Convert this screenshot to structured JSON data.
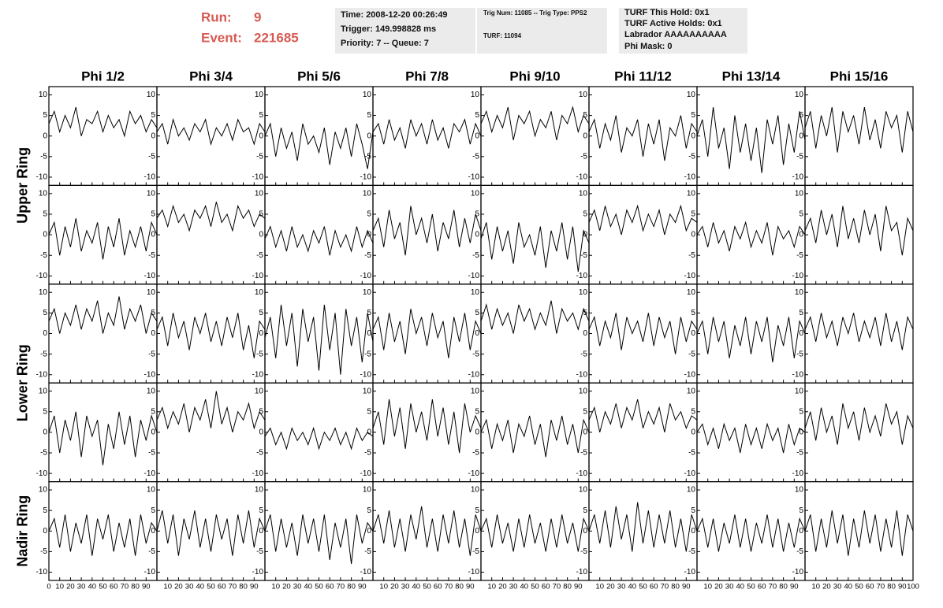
{
  "header": {
    "run_label": "Run:",
    "run": "9",
    "event_label": "Event:",
    "event": "221685",
    "info_1": [
      "Time: 2008-12-20 00:26:49",
      "Trigger: 149.998828 ms",
      "Priority: 7 -- Queue: 7"
    ],
    "info_2": [
      "Trig Num: 11085 -- Trig Type: PPS2",
      "TURF: 11094"
    ],
    "info_3": [
      "TURF This Hold: 0x1",
      "TURF Active Holds: 0x1",
      "Labrador AAAAAAAAAA",
      "Phi Mask: 0"
    ]
  },
  "chart_data": {
    "type": "line",
    "color": "#000000",
    "columns": [
      "Phi 1/2",
      "Phi 3/4",
      "Phi 5/6",
      "Phi 7/8",
      "Phi 9/10",
      "Phi 11/12",
      "Phi 13/14",
      "Phi 15/16"
    ],
    "rings": [
      {
        "name": "Upper Ring",
        "rows": [
          0,
          1
        ]
      },
      {
        "name": "Lower Ring",
        "rows": [
          2,
          3
        ]
      },
      {
        "name": "Nadir Ring",
        "rows": [
          4
        ]
      }
    ],
    "xlim": [
      0,
      100
    ],
    "xticks": [
      0,
      10,
      20,
      30,
      40,
      50,
      60,
      70,
      80,
      90,
      100
    ],
    "ylim": [
      -12,
      12
    ],
    "yticks": [
      -10,
      -5,
      0,
      5,
      10
    ],
    "x": [
      0,
      5,
      10,
      15,
      20,
      25,
      30,
      35,
      40,
      45,
      50,
      55,
      60,
      65,
      70,
      75,
      80,
      85,
      90,
      95,
      100
    ],
    "panels": [
      [
        [
          3,
          6,
          1,
          5,
          2,
          7,
          0,
          4,
          3,
          6,
          1,
          5,
          2,
          4,
          0,
          6,
          3,
          5,
          1,
          4,
          2
        ],
        [
          1,
          3,
          -2,
          4,
          0,
          2,
          -1,
          3,
          1,
          4,
          -2,
          2,
          0,
          3,
          -1,
          4,
          1,
          2,
          -2,
          3,
          1
        ],
        [
          0,
          3,
          -5,
          2,
          -3,
          1,
          -6,
          3,
          -2,
          0,
          -4,
          2,
          -7,
          1,
          -3,
          2,
          -5,
          3,
          -2,
          -8,
          1
        ],
        [
          1,
          3,
          -2,
          4,
          -1,
          2,
          -3,
          4,
          0,
          3,
          -2,
          4,
          -1,
          2,
          -3,
          3,
          1,
          4,
          -2,
          3,
          0
        ],
        [
          3,
          6,
          1,
          5,
          2,
          7,
          -1,
          5,
          3,
          6,
          0,
          4,
          2,
          6,
          -1,
          5,
          3,
          7,
          1,
          5,
          3
        ],
        [
          1,
          4,
          -3,
          3,
          -1,
          5,
          -4,
          2,
          0,
          4,
          -5,
          3,
          -2,
          4,
          -6,
          2,
          0,
          5,
          -3,
          3,
          1
        ],
        [
          0,
          4,
          -5,
          7,
          -3,
          2,
          -8,
          5,
          -4,
          3,
          -6,
          2,
          -9,
          4,
          -2,
          5,
          -7,
          3,
          -4,
          6,
          -1
        ],
        [
          2,
          6,
          -3,
          5,
          0,
          7,
          -4,
          6,
          1,
          5,
          -2,
          7,
          -1,
          4,
          -3,
          6,
          2,
          5,
          -4,
          6,
          1
        ]
      ],
      [
        [
          0,
          3,
          -5,
          2,
          -3,
          4,
          -4,
          1,
          -2,
          3,
          -6,
          2,
          -3,
          4,
          -5,
          1,
          -3,
          2,
          -4,
          3,
          0
        ],
        [
          4,
          6,
          2,
          7,
          3,
          5,
          1,
          6,
          4,
          7,
          2,
          8,
          3,
          5,
          1,
          7,
          4,
          6,
          2,
          5,
          4
        ],
        [
          -1,
          2,
          -3,
          1,
          -4,
          2,
          -3,
          0,
          -4,
          1,
          -2,
          2,
          -5,
          1,
          -3,
          0,
          -4,
          2,
          -3,
          1,
          -2
        ],
        [
          1,
          4,
          -3,
          6,
          -1,
          3,
          -5,
          7,
          0,
          4,
          -2,
          5,
          -4,
          3,
          -1,
          6,
          -3,
          4,
          -2,
          5,
          1
        ],
        [
          -1,
          3,
          -6,
          2,
          -4,
          1,
          -7,
          3,
          -3,
          0,
          -5,
          2,
          -8,
          1,
          -4,
          3,
          -6,
          2,
          -9,
          1,
          -2
        ],
        [
          3,
          6,
          1,
          7,
          2,
          5,
          0,
          6,
          3,
          7,
          1,
          5,
          2,
          6,
          0,
          5,
          3,
          7,
          1,
          4,
          3
        ],
        [
          0,
          2,
          -3,
          3,
          -2,
          1,
          -4,
          2,
          -1,
          3,
          -3,
          1,
          -2,
          3,
          -5,
          2,
          -1,
          1,
          -3,
          2,
          0
        ],
        [
          1,
          4,
          -2,
          6,
          0,
          5,
          -3,
          7,
          -1,
          4,
          -2,
          6,
          0,
          5,
          -4,
          7,
          1,
          3,
          -5,
          4,
          1
        ]
      ],
      [
        [
          3,
          6,
          0,
          5,
          2,
          7,
          1,
          6,
          3,
          8,
          0,
          5,
          2,
          9,
          1,
          6,
          3,
          7,
          0,
          5,
          3
        ],
        [
          1,
          4,
          -3,
          5,
          -1,
          3,
          -4,
          4,
          0,
          5,
          -2,
          3,
          -3,
          4,
          -1,
          5,
          -4,
          2,
          -6,
          3,
          1
        ],
        [
          -1,
          4,
          -6,
          7,
          -3,
          5,
          -8,
          6,
          -2,
          4,
          -9,
          7,
          -4,
          5,
          -10,
          6,
          -3,
          4,
          -7,
          5,
          -2
        ],
        [
          1,
          4,
          -4,
          5,
          -2,
          3,
          -5,
          6,
          0,
          4,
          -3,
          5,
          -1,
          3,
          -6,
          4,
          -2,
          5,
          -4,
          3,
          0
        ],
        [
          3,
          7,
          1,
          6,
          2,
          5,
          0,
          7,
          3,
          6,
          1,
          5,
          2,
          8,
          0,
          6,
          3,
          5,
          1,
          6,
          3
        ],
        [
          1,
          4,
          -3,
          3,
          -1,
          5,
          -4,
          4,
          0,
          3,
          -2,
          5,
          -3,
          4,
          -1,
          3,
          -5,
          4,
          -2,
          3,
          1
        ],
        [
          0,
          3,
          -5,
          4,
          -2,
          3,
          -6,
          2,
          -3,
          4,
          -5,
          3,
          -2,
          4,
          -7,
          2,
          -3,
          4,
          -6,
          3,
          0
        ],
        [
          1,
          4,
          -2,
          5,
          -1,
          3,
          -3,
          4,
          0,
          5,
          -2,
          3,
          -1,
          4,
          -3,
          5,
          -2,
          3,
          -4,
          4,
          1
        ]
      ],
      [
        [
          0,
          4,
          -5,
          3,
          -2,
          5,
          -6,
          4,
          -1,
          3,
          -8,
          2,
          -4,
          5,
          -3,
          4,
          -6,
          3,
          -2,
          4,
          0
        ],
        [
          3,
          6,
          1,
          5,
          2,
          7,
          0,
          6,
          3,
          8,
          1,
          10,
          2,
          6,
          0,
          5,
          3,
          7,
          1,
          5,
          3
        ],
        [
          -1,
          1,
          -3,
          0,
          -4,
          1,
          -2,
          0,
          -3,
          1,
          -4,
          0,
          -2,
          1,
          -3,
          0,
          -4,
          1,
          -2,
          0,
          -1
        ],
        [
          1,
          5,
          -3,
          8,
          -1,
          6,
          -4,
          7,
          0,
          5,
          -2,
          8,
          -1,
          6,
          -3,
          5,
          -5,
          7,
          0,
          4,
          1
        ],
        [
          0,
          3,
          -4,
          2,
          -2,
          3,
          -5,
          2,
          -1,
          4,
          -3,
          2,
          -6,
          3,
          -2,
          4,
          -3,
          2,
          -5,
          3,
          0
        ],
        [
          3,
          6,
          0,
          5,
          2,
          7,
          1,
          6,
          3,
          8,
          1,
          5,
          2,
          6,
          0,
          7,
          3,
          5,
          1,
          4,
          3
        ],
        [
          0,
          2,
          -3,
          1,
          -4,
          2,
          -2,
          1,
          -5,
          2,
          -3,
          1,
          -4,
          2,
          -2,
          1,
          -5,
          2,
          -3,
          1,
          0
        ],
        [
          1,
          5,
          -2,
          6,
          0,
          4,
          -3,
          7,
          1,
          5,
          -2,
          6,
          0,
          4,
          -1,
          7,
          2,
          5,
          -3,
          4,
          1
        ]
      ],
      [
        [
          0,
          3,
          -4,
          4,
          -5,
          2,
          -3,
          4,
          -6,
          3,
          -2,
          4,
          -5,
          2,
          -4,
          3,
          -6,
          4,
          -3,
          2,
          0
        ],
        [
          0,
          5,
          -3,
          4,
          -6,
          3,
          -2,
          5,
          -4,
          3,
          -5,
          4,
          -2,
          3,
          -6,
          4,
          -3,
          5,
          -4,
          3,
          0
        ],
        [
          0,
          4,
          -5,
          3,
          -4,
          2,
          -6,
          4,
          -3,
          3,
          -5,
          4,
          -7,
          2,
          -4,
          3,
          -8,
          4,
          -3,
          2,
          0
        ],
        [
          0,
          4,
          -3,
          5,
          -4,
          3,
          -5,
          4,
          -2,
          6,
          -4,
          3,
          -5,
          4,
          -3,
          5,
          -4,
          3,
          -6,
          4,
          0
        ],
        [
          0,
          3,
          -4,
          4,
          -3,
          2,
          -5,
          3,
          -4,
          4,
          -3,
          2,
          -5,
          3,
          -4,
          4,
          -3,
          2,
          -5,
          3,
          0
        ],
        [
          0,
          4,
          -3,
          5,
          -4,
          6,
          -2,
          4,
          -5,
          7,
          -3,
          5,
          -4,
          4,
          -3,
          5,
          -4,
          3,
          -5,
          4,
          0
        ],
        [
          0,
          3,
          -4,
          3,
          -5,
          2,
          -3,
          4,
          -4,
          3,
          -5,
          2,
          -3,
          4,
          -4,
          3,
          -5,
          2,
          -4,
          3,
          0
        ],
        [
          0,
          4,
          -5,
          3,
          -4,
          5,
          -3,
          4,
          -6,
          3,
          -4,
          5,
          -3,
          4,
          -5,
          3,
          -4,
          5,
          -6,
          4,
          0
        ]
      ]
    ]
  }
}
